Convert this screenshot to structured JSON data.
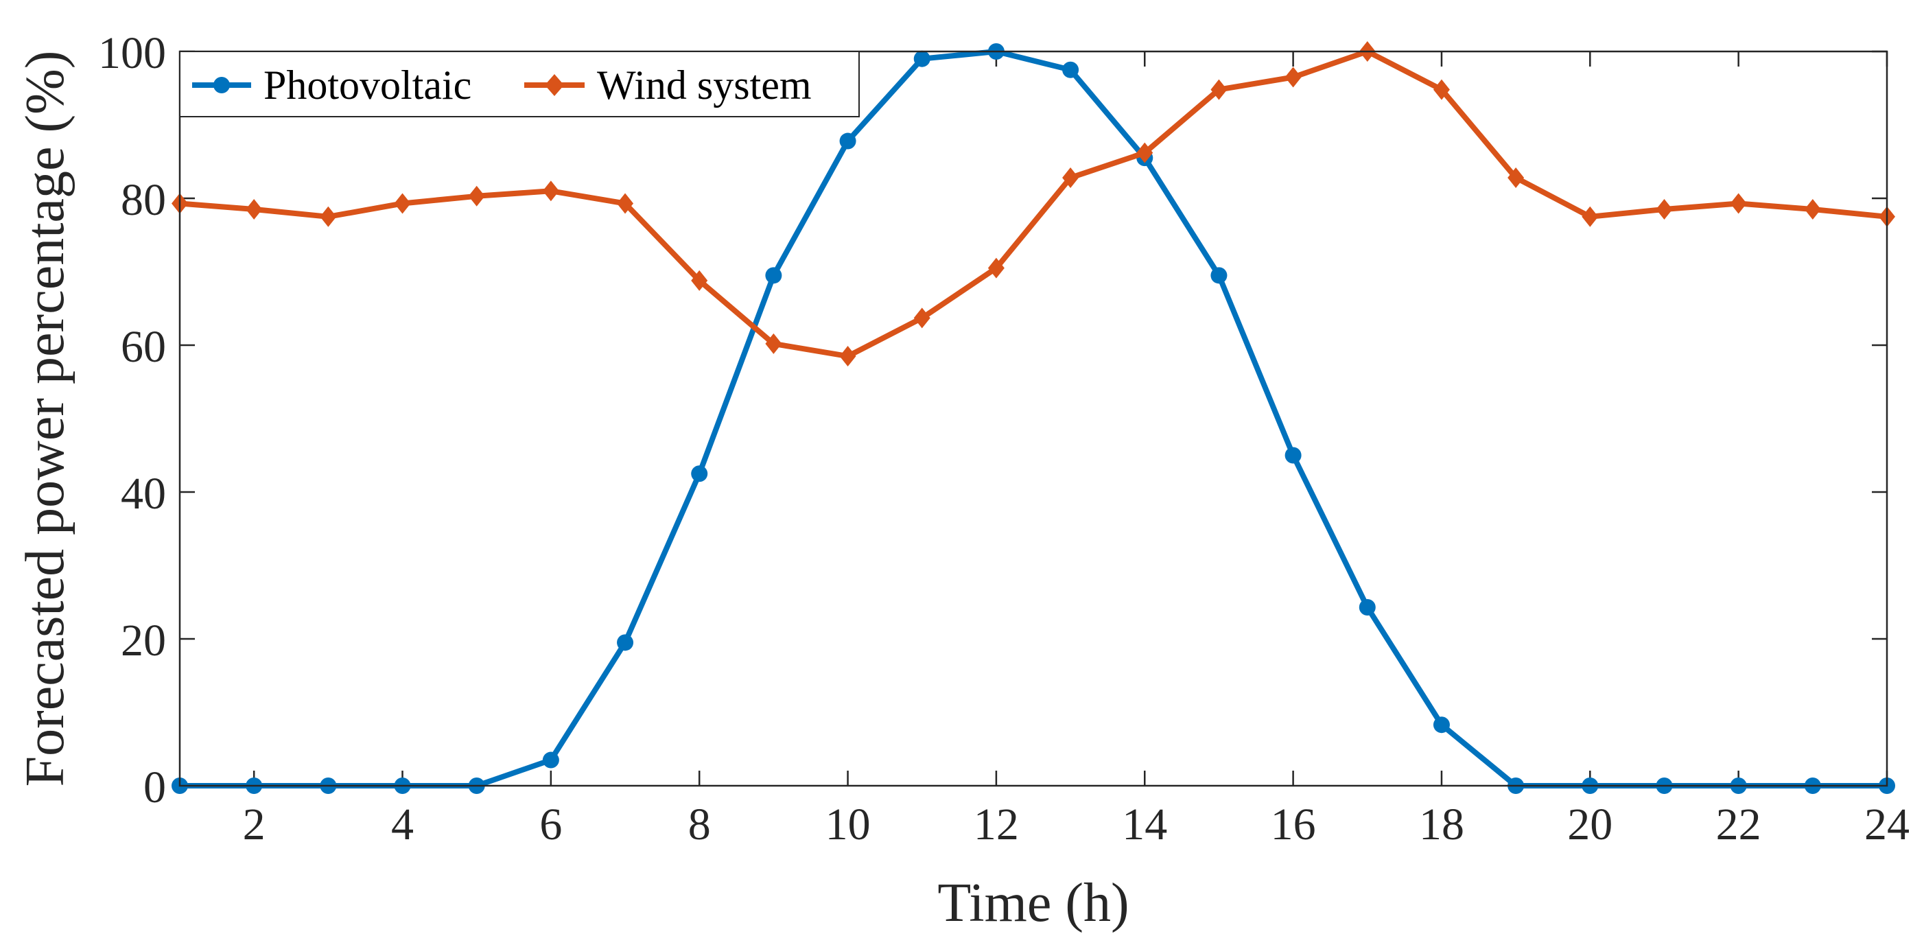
{
  "chart_data": {
    "type": "line",
    "title": "",
    "xlabel": "Time (h)",
    "ylabel": "Forecasted power percentage (%)",
    "xlim": [
      1,
      24
    ],
    "ylim": [
      0,
      100
    ],
    "xticks": [
      2,
      4,
      6,
      8,
      10,
      12,
      14,
      16,
      18,
      20,
      22,
      24
    ],
    "yticks": [
      0,
      20,
      40,
      60,
      80,
      100
    ],
    "grid": false,
    "legend_position": "top-left",
    "x": [
      1,
      2,
      3,
      4,
      5,
      6,
      7,
      8,
      9,
      10,
      11,
      12,
      13,
      14,
      15,
      16,
      17,
      18,
      19,
      20,
      21,
      22,
      23,
      24
    ],
    "series": [
      {
        "name": "Photovoltaic",
        "color": "#0072BD",
        "marker": "circle",
        "values": [
          0,
          0,
          0,
          0,
          0,
          3.5,
          19.5,
          42.5,
          69.5,
          87.8,
          99,
          100,
          97.5,
          85.5,
          69.5,
          45,
          24.3,
          8.3,
          0,
          0,
          0,
          0,
          0,
          0
        ]
      },
      {
        "name": "Wind system",
        "color": "#D95319",
        "marker": "diamond",
        "values": [
          79.3,
          78.5,
          77.5,
          79.3,
          80.3,
          81,
          79.3,
          68.8,
          60.2,
          58.5,
          63.7,
          70.5,
          82.8,
          86.2,
          94.8,
          96.5,
          100,
          94.8,
          82.8,
          77.5,
          78.5,
          79.3,
          78.5,
          77.5
        ]
      }
    ]
  }
}
